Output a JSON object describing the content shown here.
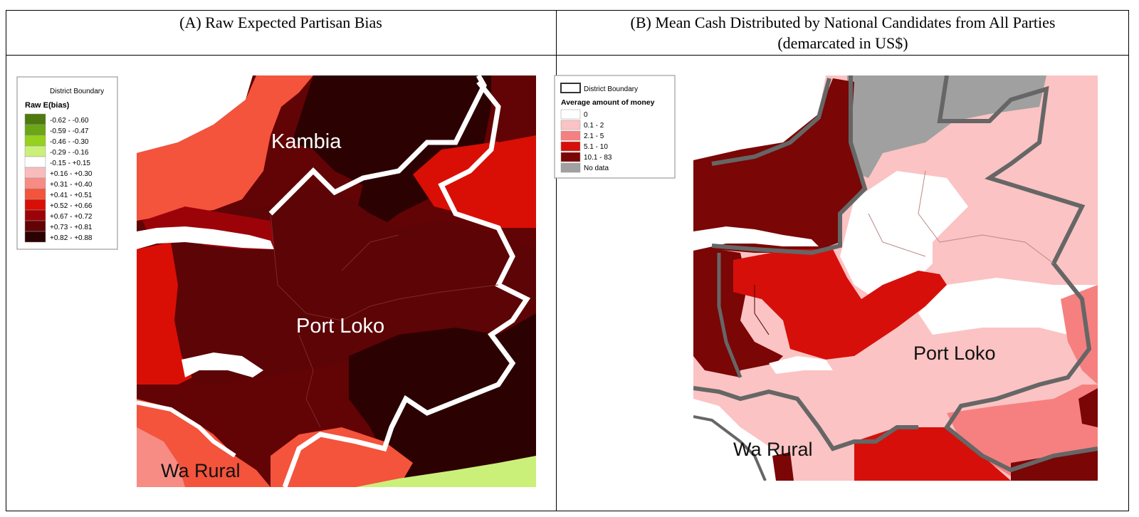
{
  "panels": {
    "a": {
      "title": "(A) Raw Expected Partisan Bias",
      "legend": {
        "boundary_label": "District Boundary",
        "title": "Raw E(bias)",
        "items": [
          {
            "label": "-0.62 - -0.60",
            "color": "#4e7a0e"
          },
          {
            "label": "-0.59 - -0.47",
            "color": "#6aa616"
          },
          {
            "label": "-0.46 - -0.30",
            "color": "#95d11d"
          },
          {
            "label": "-0.29 - -0.16",
            "color": "#cbf07a"
          },
          {
            "label": "-0.15 - +0.15",
            "color": "#ffffff"
          },
          {
            "label": "+0.16 - +0.30",
            "color": "#f9bcbc"
          },
          {
            "label": "+0.31 - +0.40",
            "color": "#f68c84"
          },
          {
            "label": "+0.41 - +0.51",
            "color": "#f4533c"
          },
          {
            "label": "+0.52 - +0.66",
            "color": "#d90f05"
          },
          {
            "label": "+0.67 - +0.72",
            "color": "#9c0309"
          },
          {
            "label": "+0.73 - +0.81",
            "color": "#620305"
          },
          {
            "label": "+0.82 - +0.88",
            "color": "#2c0101"
          }
        ]
      },
      "place_labels": [
        "Kambia",
        "Port Loko",
        "Wa Rural"
      ]
    },
    "b": {
      "title_line1": "(B) Mean Cash Distributed by National Candidates from All Parties",
      "title_line2": "(demarcated in US$)",
      "legend": {
        "boundary_label": "District Boundary",
        "title": "Average amount of money",
        "items": [
          {
            "label": "0",
            "color": "#ffffff"
          },
          {
            "label": "0.1 - 2",
            "color": "#fbc3c3"
          },
          {
            "label": "2.1 - 5",
            "color": "#f68080"
          },
          {
            "label": "5.1 - 10",
            "color": "#d70f0a"
          },
          {
            "label": "10.1 - 83",
            "color": "#7a0606"
          },
          {
            "label": "No data",
            "color": "#a0a0a0"
          }
        ]
      },
      "place_labels": [
        "Port Loko",
        "Wa Rural"
      ]
    }
  }
}
